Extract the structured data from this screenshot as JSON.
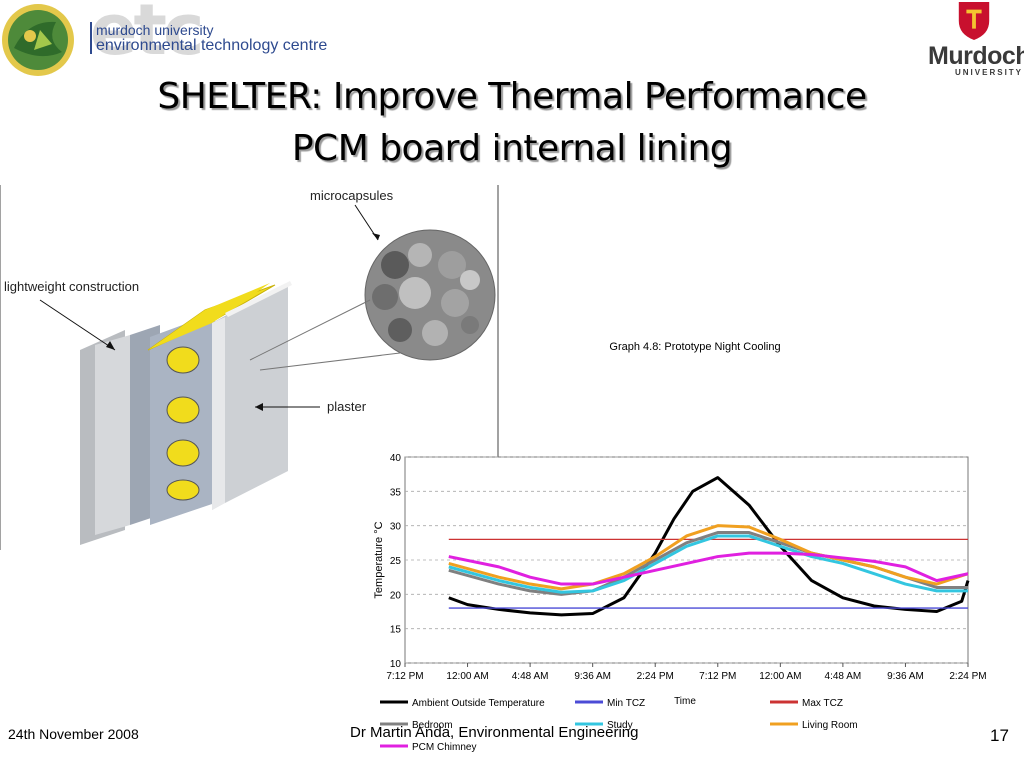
{
  "header": {
    "etc_logo_line1": "murdoch university",
    "etc_logo_line2": "environmental technology centre",
    "etc_wordmark": "etc",
    "murdoch_logo_name": "Murdoch",
    "murdoch_logo_sub": "UNIVERSITY"
  },
  "title": {
    "line1": "SHELTER: Improve Thermal Performance",
    "line2": "PCM board internal lining"
  },
  "diagram": {
    "label_microcapsules": "microcapsules",
    "label_lightweight": "lightweight construction",
    "label_plaster": "plaster",
    "colors": {
      "board_fill": "#f1dc1c",
      "wall": "#c9ccd0",
      "capsule_bg": "#8a8a8a"
    }
  },
  "chart_data": {
    "type": "line",
    "title": "Graph 4.8: Prototype Night Cooling",
    "xlabel": "Time",
    "ylabel": "Temperature °C",
    "ylim": [
      10,
      40
    ],
    "yticks": [
      10,
      15,
      20,
      25,
      30,
      35,
      40
    ],
    "xtick_labels": [
      "7:12 PM",
      "12:00 AM",
      "4:48 AM",
      "9:36 AM",
      "2:24 PM",
      "7:12 PM",
      "12:00 AM",
      "4:48 AM",
      "9:36 AM",
      "2:24 PM"
    ],
    "legend": [
      {
        "name": "Ambient Outside Temperature",
        "color": "#000000"
      },
      {
        "name": "Min TCZ",
        "color": "#4b4bd6"
      },
      {
        "name": "Max TCZ",
        "color": "#cc3333"
      },
      {
        "name": "Bedroom",
        "color": "#808080"
      },
      {
        "name": "Study",
        "color": "#33c6e0"
      },
      {
        "name": "Living Room",
        "color": "#f0a020"
      },
      {
        "name": "PCM Chimney",
        "color": "#e020e0"
      }
    ],
    "series": [
      {
        "name": "Ambient Outside Temperature",
        "color": "#000000",
        "x": [
          0.7,
          1,
          1.5,
          2,
          2.5,
          3,
          3.5,
          4,
          4.3,
          4.6,
          5,
          5.5,
          6,
          6.5,
          7,
          7.5,
          8,
          8.5,
          8.9,
          9
        ],
        "y": [
          19.5,
          18.5,
          17.8,
          17.3,
          17,
          17.2,
          19.5,
          26,
          31,
          35,
          37,
          33,
          27,
          22,
          19.5,
          18.3,
          17.8,
          17.5,
          19,
          22
        ]
      },
      {
        "name": "Min TCZ",
        "color": "#4b4bd6",
        "x": [
          0.7,
          9
        ],
        "y": [
          18,
          18
        ]
      },
      {
        "name": "Max TCZ",
        "color": "#cc3333",
        "x": [
          0.7,
          9
        ],
        "y": [
          28,
          28
        ]
      },
      {
        "name": "Bedroom",
        "color": "#808080",
        "x": [
          0.7,
          1.5,
          2,
          2.5,
          3,
          3.5,
          4,
          4.5,
          5,
          5.5,
          6,
          6.5,
          7,
          7.5,
          8,
          8.5,
          9
        ],
        "y": [
          23.5,
          21.5,
          20.5,
          20,
          20.5,
          22.5,
          25,
          27.5,
          29,
          29,
          27.5,
          26,
          25,
          24,
          22.5,
          21,
          21
        ]
      },
      {
        "name": "Study",
        "color": "#33c6e0",
        "x": [
          0.7,
          1.5,
          2,
          2.5,
          3,
          3.5,
          4,
          4.5,
          5,
          5.5,
          6,
          6.5,
          7,
          7.5,
          8,
          8.5,
          9
        ],
        "y": [
          24,
          22,
          21,
          20.3,
          20.5,
          22,
          24.5,
          27,
          28.5,
          28.5,
          27,
          25.5,
          24.5,
          23,
          21.5,
          20.5,
          20.5
        ]
      },
      {
        "name": "Living Room",
        "color": "#f0a020",
        "x": [
          0.7,
          1.5,
          2,
          2.5,
          3,
          3.5,
          4,
          4.5,
          5,
          5.5,
          6,
          6.5,
          7,
          7.5,
          8,
          8.5,
          9
        ],
        "y": [
          24.5,
          22.5,
          21.5,
          20.8,
          21.5,
          23,
          25.5,
          28.5,
          30,
          29.8,
          28,
          26,
          25,
          24,
          22.5,
          21.5,
          23
        ]
      },
      {
        "name": "PCM Chimney",
        "color": "#e020e0",
        "x": [
          0.7,
          1.5,
          2,
          2.5,
          3,
          3.5,
          4,
          4.5,
          5,
          5.5,
          6,
          6.5,
          7,
          7.5,
          8,
          8.5,
          9
        ],
        "y": [
          25.5,
          24,
          22.5,
          21.5,
          21.5,
          22.5,
          23.5,
          24.5,
          25.5,
          26,
          26,
          25.8,
          25.3,
          24.8,
          24,
          22,
          23
        ]
      }
    ]
  },
  "footer": {
    "date": "24th November 2008",
    "author": "Dr Martin Anda, Environmental Engineering",
    "page": "17"
  }
}
